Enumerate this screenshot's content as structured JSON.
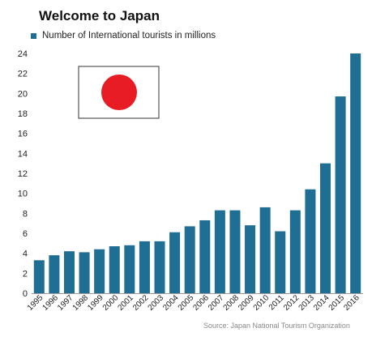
{
  "chart_data": {
    "type": "bar",
    "title": "Welcome to Japan",
    "legend": "Number of International tourists in millions",
    "legend_position": "top-left",
    "source": "Source: Japan National Tourism Organization",
    "categories": [
      "1995",
      "1996",
      "1997",
      "1998",
      "1999",
      "2000",
      "2001",
      "2002",
      "2003",
      "2004",
      "2005",
      "2006",
      "2007",
      "2008",
      "2009",
      "2010",
      "2011",
      "2012",
      "2013",
      "2014",
      "2015",
      "2016"
    ],
    "series": [
      {
        "name": "Number of International tourists in millions",
        "values": [
          3.3,
          3.8,
          4.2,
          4.1,
          4.4,
          4.7,
          4.8,
          5.2,
          5.2,
          6.1,
          6.7,
          7.3,
          8.3,
          8.3,
          6.8,
          8.6,
          6.2,
          8.3,
          10.4,
          13.0,
          19.7,
          24.0
        ]
      }
    ],
    "yticks": [
      0,
      2,
      4,
      6,
      8,
      10,
      12,
      14,
      16,
      18,
      20,
      22,
      24
    ],
    "ylim": [
      0,
      24.5
    ],
    "grid": false,
    "colors": {
      "bar": "#1f6e94",
      "axis": "#9a9a9a",
      "flag_circle": "#e81c24"
    },
    "decoration": {
      "icon": "japan-flag-icon"
    }
  }
}
